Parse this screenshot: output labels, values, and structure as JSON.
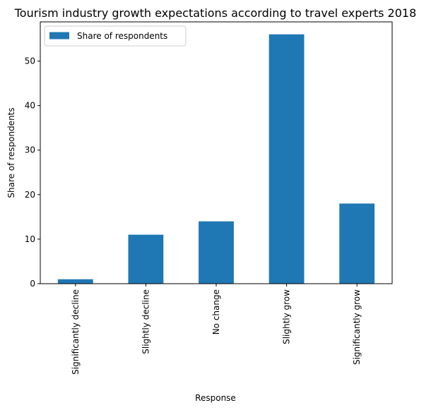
{
  "chart_data": {
    "type": "bar",
    "title": "Tourism industry growth expectations according to travel experts 2018",
    "xlabel": "Response",
    "ylabel": "Share of respondents",
    "categories": [
      "Significantly decline",
      "Slightly decline",
      "No change",
      "Slightly grow",
      "Significantly grow"
    ],
    "series": [
      {
        "name": "Share of respondents",
        "values": [
          1,
          11,
          14,
          56,
          18
        ],
        "color": "#1f77b4"
      }
    ],
    "ylim": [
      0,
      58.8
    ],
    "yticks": [
      0,
      10,
      20,
      30,
      40,
      50
    ],
    "grid": false,
    "legend_position": "top-left"
  }
}
